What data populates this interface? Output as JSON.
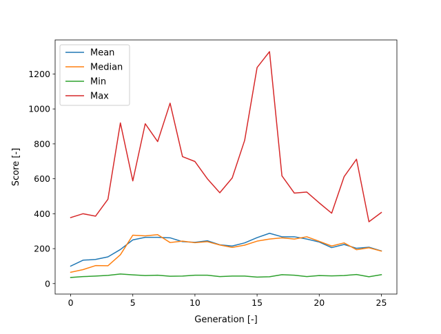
{
  "chart_data": {
    "type": "line",
    "xlabel": "Generation [-]",
    "ylabel": "Score [-]",
    "xlim": [
      -1.25,
      26.25
    ],
    "ylim": [
      -60,
      1395
    ],
    "xticks": [
      0,
      5,
      10,
      15,
      20,
      25
    ],
    "yticks": [
      0,
      200,
      400,
      600,
      800,
      1000,
      1200
    ],
    "grid": false,
    "legend_position": "upper-left",
    "x": [
      0,
      1,
      2,
      3,
      4,
      5,
      6,
      7,
      8,
      9,
      10,
      11,
      12,
      13,
      14,
      15,
      16,
      17,
      18,
      19,
      20,
      21,
      22,
      23,
      24,
      25
    ],
    "series": [
      {
        "name": "Mean",
        "color": "#1f77b4",
        "values": [
          100,
          134,
          138,
          153,
          195,
          250,
          265,
          265,
          262,
          240,
          236,
          245,
          222,
          215,
          233,
          263,
          288,
          268,
          268,
          255,
          238,
          206,
          224,
          202,
          208,
          187
        ]
      },
      {
        "name": "Median",
        "color": "#ff7f0e",
        "values": [
          65,
          80,
          103,
          102,
          165,
          277,
          273,
          280,
          235,
          243,
          234,
          240,
          221,
          207,
          220,
          243,
          255,
          262,
          255,
          268,
          242,
          215,
          233,
          194,
          205,
          186
        ]
      },
      {
        "name": "Min",
        "color": "#2ca02c",
        "values": [
          35,
          40,
          43,
          47,
          55,
          50,
          46,
          48,
          42,
          43,
          48,
          48,
          40,
          43,
          43,
          37,
          39,
          51,
          48,
          40,
          46,
          44,
          46,
          52,
          39,
          51
        ]
      },
      {
        "name": "Max",
        "color": "#d62728",
        "values": [
          378,
          400,
          386,
          483,
          920,
          588,
          915,
          813,
          1033,
          727,
          699,
          600,
          520,
          605,
          820,
          1237,
          1328,
          617,
          518,
          524,
          462,
          403,
          612,
          712,
          354,
          407
        ]
      }
    ]
  }
}
